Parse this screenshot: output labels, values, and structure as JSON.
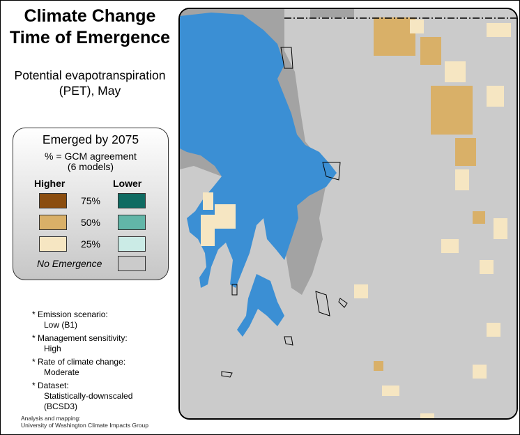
{
  "title_line1": "Climate Change",
  "title_line2": "Time of Emergence",
  "subtitle_line1": "Potential evapotranspiration",
  "subtitle_line2": "(PET), May",
  "legend": {
    "title": "Emerged by 2075",
    "subtitle_line1": "% = GCM agreement",
    "subtitle_line2": "(6 models)",
    "higher_label": "Higher",
    "lower_label": "Lower",
    "rows": [
      {
        "pct": "75%",
        "higher_color": "#8b4d0f",
        "lower_color": "#0f6b62"
      },
      {
        "pct": "50%",
        "higher_color": "#d9b068",
        "lower_color": "#62b6a8"
      },
      {
        "pct": "25%",
        "higher_color": "#f6e6c2",
        "lower_color": "#cbebe6"
      }
    ],
    "no_emergence_label": "No Emergence",
    "no_emergence_color": "#cbcbcb"
  },
  "notes": [
    {
      "label": "* Emission scenario:",
      "value": "Low (B1)"
    },
    {
      "label": "* Management sensitivity:",
      "value": "High"
    },
    {
      "label": "* Rate of climate change:",
      "value": "Moderate"
    },
    {
      "label": "* Dataset:",
      "value": "Statistically-downscaled (BCSD3)"
    }
  ],
  "credit_line1": "Analysis and mapping:",
  "credit_line2": "University of Washington Climate Impacts Group",
  "map_colors": {
    "water": "#3b8fd4",
    "dark_land": "#a3a3a3",
    "no_emergence": "#cbcbcb",
    "higher_25": "#f6e6c2",
    "higher_50": "#d9b068"
  }
}
